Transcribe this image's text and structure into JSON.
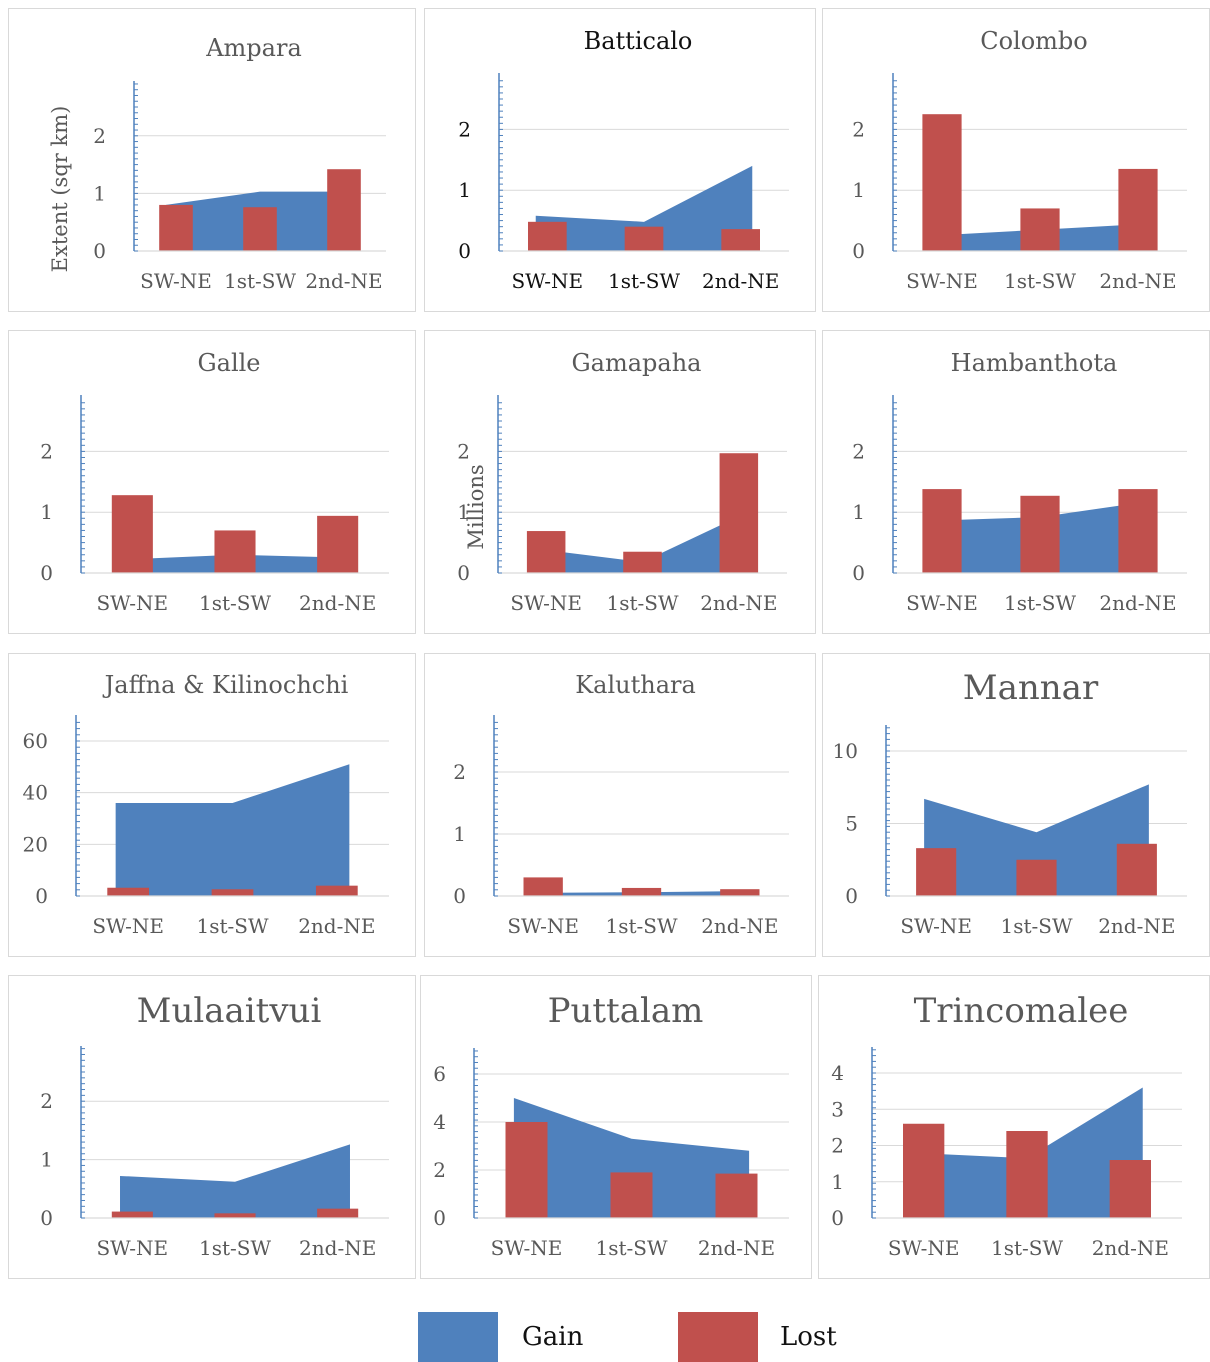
{
  "colors": {
    "gain": "#4f81bd",
    "lost": "#c0504d",
    "grid": "#d9d9d9",
    "axis": "#4f81bd"
  },
  "legend": {
    "gain_label": "Gain",
    "lost_label": "Lost"
  },
  "chart_data": [
    {
      "type": "bar",
      "title": "Ampara",
      "ylabel": "Extent (sqr km)",
      "categories": [
        "SW-NE",
        "1st-SW",
        "2nd-NE"
      ],
      "ylim": [
        0,
        2.5
      ],
      "yticks": [
        0,
        1,
        2
      ],
      "series": [
        {
          "name": "Gain",
          "type": "area",
          "values": [
            0.8,
            1.03,
            1.03
          ]
        },
        {
          "name": "Lost",
          "type": "bar",
          "values": [
            0.8,
            0.76,
            1.42
          ]
        }
      ]
    },
    {
      "type": "bar",
      "title": "Batticalo",
      "ylabel": "",
      "categories": [
        "SW-NE",
        "1st-SW",
        "2nd-NE"
      ],
      "ylim": [
        0,
        2.5
      ],
      "yticks": [
        0,
        1,
        2
      ],
      "series": [
        {
          "name": "Gain",
          "type": "area",
          "values": [
            0.58,
            0.48,
            1.4
          ]
        },
        {
          "name": "Lost",
          "type": "bar",
          "values": [
            0.48,
            0.4,
            0.36
          ]
        }
      ]
    },
    {
      "type": "bar",
      "title": "Colombo",
      "ylabel": "",
      "categories": [
        "SW-NE",
        "1st-SW",
        "2nd-NE"
      ],
      "ylim": [
        0,
        2.5
      ],
      "yticks": [
        0,
        1,
        2
      ],
      "series": [
        {
          "name": "Gain",
          "type": "area",
          "values": [
            0.25,
            0.35,
            0.45
          ]
        },
        {
          "name": "Lost",
          "type": "bar",
          "values": [
            2.25,
            0.7,
            1.35
          ]
        }
      ]
    },
    {
      "type": "bar",
      "title": "Galle",
      "ylabel": "",
      "categories": [
        "SW-NE",
        "1st-SW",
        "2nd-NE"
      ],
      "ylim": [
        0,
        2.5
      ],
      "yticks": [
        0,
        1,
        2
      ],
      "series": [
        {
          "name": "Gain",
          "type": "area",
          "values": [
            0.22,
            0.3,
            0.25
          ]
        },
        {
          "name": "Lost",
          "type": "bar",
          "values": [
            1.28,
            0.7,
            0.94
          ]
        }
      ]
    },
    {
      "type": "bar",
      "title": "Gamapaha",
      "ylabel": "Millions",
      "categories": [
        "SW-NE",
        "1st-SW",
        "2nd-NE"
      ],
      "ylim": [
        0,
        2.5
      ],
      "yticks": [
        0,
        1,
        2
      ],
      "series": [
        {
          "name": "Gain",
          "type": "area",
          "values": [
            0.4,
            0.18,
            1.02
          ]
        },
        {
          "name": "Lost",
          "type": "bar",
          "values": [
            0.69,
            0.35,
            1.97
          ]
        }
      ]
    },
    {
      "type": "bar",
      "title": "Hambanthota",
      "ylabel": "",
      "categories": [
        "SW-NE",
        "1st-SW",
        "2nd-NE"
      ],
      "ylim": [
        0,
        2.5
      ],
      "yticks": [
        0,
        1,
        2
      ],
      "series": [
        {
          "name": "Gain",
          "type": "area",
          "values": [
            0.86,
            0.92,
            1.18
          ]
        },
        {
          "name": "Lost",
          "type": "bar",
          "values": [
            1.38,
            1.27,
            1.38
          ]
        }
      ]
    },
    {
      "type": "bar",
      "title": "Jaffna & Kilinochchi",
      "ylabel": "",
      "categories": [
        "SW-NE",
        "1st-SW",
        "2nd-NE"
      ],
      "ylim": [
        0,
        60
      ],
      "yticks": [
        0,
        20,
        40,
        60
      ],
      "series": [
        {
          "name": "Gain",
          "type": "area",
          "values": [
            36,
            36,
            51
          ]
        },
        {
          "name": "Lost",
          "type": "bar",
          "values": [
            3.2,
            2.6,
            4.0
          ]
        }
      ]
    },
    {
      "type": "bar",
      "title": "Kaluthara",
      "ylabel": "",
      "categories": [
        "SW-NE",
        "1st-SW",
        "2nd-NE"
      ],
      "ylim": [
        0,
        2.5
      ],
      "yticks": [
        0,
        1,
        2
      ],
      "series": [
        {
          "name": "Gain",
          "type": "area",
          "values": [
            0.05,
            0.06,
            0.08
          ]
        },
        {
          "name": "Lost",
          "type": "bar",
          "values": [
            0.3,
            0.13,
            0.11
          ]
        }
      ]
    },
    {
      "type": "bar",
      "title": "Mannar",
      "ylabel": "",
      "categories": [
        "SW-NE",
        "1st-SW",
        "2nd-NE"
      ],
      "ylim": [
        0,
        10
      ],
      "yticks": [
        0,
        5,
        10
      ],
      "series": [
        {
          "name": "Gain",
          "type": "area",
          "values": [
            6.7,
            4.4,
            7.7
          ]
        },
        {
          "name": "Lost",
          "type": "bar",
          "values": [
            3.3,
            2.5,
            3.6
          ]
        }
      ]
    },
    {
      "type": "bar",
      "title": "Mulaaitvui",
      "ylabel": "",
      "categories": [
        "SW-NE",
        "1st-SW",
        "2nd-NE"
      ],
      "ylim": [
        0,
        2.5
      ],
      "yticks": [
        0,
        1,
        2
      ],
      "series": [
        {
          "name": "Gain",
          "type": "area",
          "values": [
            0.72,
            0.62,
            1.26
          ]
        },
        {
          "name": "Lost",
          "type": "bar",
          "values": [
            0.11,
            0.08,
            0.16
          ]
        }
      ]
    },
    {
      "type": "bar",
      "title": "Puttalam",
      "ylabel": "",
      "categories": [
        "SW-NE",
        "1st-SW",
        "2nd-NE"
      ],
      "ylim": [
        0,
        6
      ],
      "yticks": [
        0,
        2,
        4,
        6
      ],
      "series": [
        {
          "name": "Gain",
          "type": "area",
          "values": [
            5.0,
            3.3,
            2.8
          ]
        },
        {
          "name": "Lost",
          "type": "bar",
          "values": [
            4.0,
            1.9,
            1.85
          ]
        }
      ]
    },
    {
      "type": "bar",
      "title": "Trincomalee",
      "ylabel": "",
      "categories": [
        "SW-NE",
        "1st-SW",
        "2nd-NE"
      ],
      "ylim": [
        0,
        4
      ],
      "yticks": [
        0,
        1,
        2,
        3,
        4
      ],
      "series": [
        {
          "name": "Gain",
          "type": "area",
          "values": [
            1.8,
            1.65,
            3.6
          ]
        },
        {
          "name": "Lost",
          "type": "bar",
          "values": [
            2.6,
            2.4,
            1.6
          ]
        }
      ]
    }
  ]
}
